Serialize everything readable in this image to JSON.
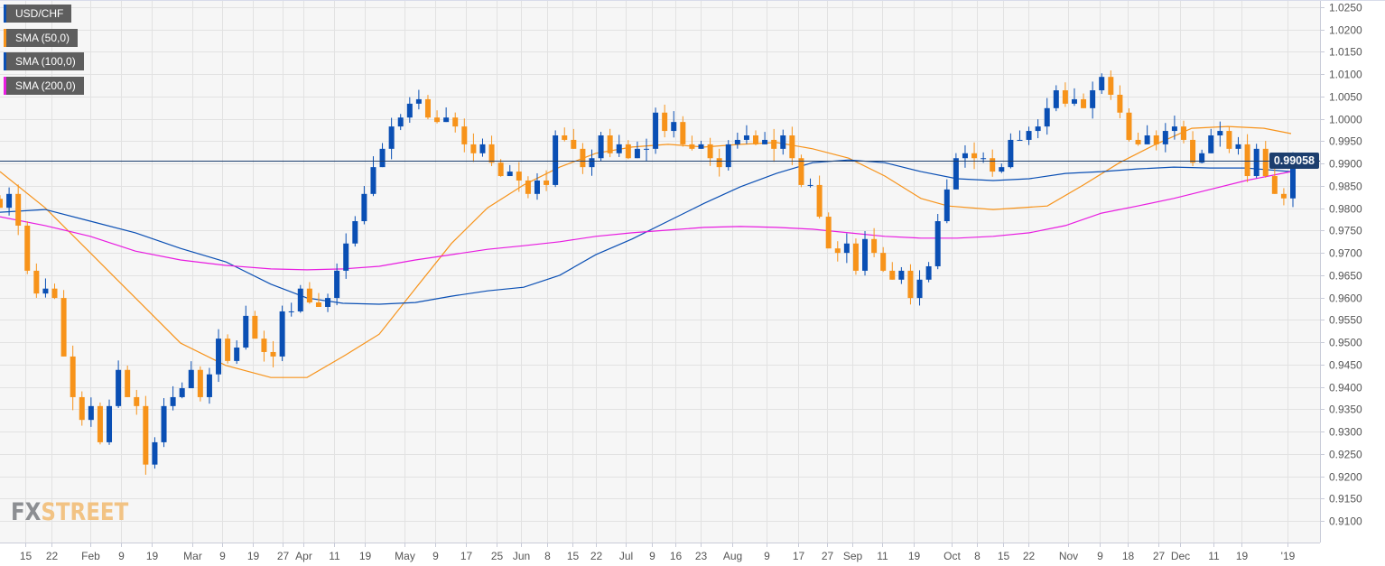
{
  "chart_data": {
    "type": "candlestick",
    "symbol": "USD/CHF",
    "legend": [
      {
        "label": "USD/CHF",
        "color": "#0a4fb4"
      },
      {
        "label": "SMA (50,0)",
        "color": "#f7931a"
      },
      {
        "label": "SMA (100,0)",
        "color": "#0a4fb4"
      },
      {
        "label": "SMA (200,0)",
        "color": "#e81ce0"
      }
    ],
    "legend_placement": "top-left",
    "last_price": 0.99058,
    "last_price_label": "0.99058",
    "ylim": [
      0.905,
      1.0265
    ],
    "yticks": [
      "1.0250",
      "1.0200",
      "1.0150",
      "1.0100",
      "1.0050",
      "1.0000",
      "0.9950",
      "0.9900",
      "0.9850",
      "0.9800",
      "0.9750",
      "0.9700",
      "0.9650",
      "0.9600",
      "0.9550",
      "0.9500",
      "0.9450",
      "0.9400",
      "0.9350",
      "0.9300",
      "0.9250",
      "0.9200",
      "0.9150",
      "0.9100"
    ],
    "xlim": [
      0,
      146
    ],
    "xticks": [
      {
        "t": 2.8,
        "label": "15"
      },
      {
        "t": 5.7,
        "label": "22"
      },
      {
        "t": 10,
        "label": "Feb"
      },
      {
        "t": 13.4,
        "label": "9"
      },
      {
        "t": 16.8,
        "label": "19"
      },
      {
        "t": 21.3,
        "label": "Mar"
      },
      {
        "t": 24.6,
        "label": "9"
      },
      {
        "t": 28,
        "label": "19"
      },
      {
        "t": 31.3,
        "label": "27"
      },
      {
        "t": 33.6,
        "label": "Apr"
      },
      {
        "t": 37,
        "label": "11"
      },
      {
        "t": 40.4,
        "label": "19"
      },
      {
        "t": 44.8,
        "label": "May"
      },
      {
        "t": 48.2,
        "label": "9"
      },
      {
        "t": 51.6,
        "label": "17"
      },
      {
        "t": 55,
        "label": "25"
      },
      {
        "t": 57.7,
        "label": "Jun"
      },
      {
        "t": 60.6,
        "label": "8"
      },
      {
        "t": 63.4,
        "label": "15"
      },
      {
        "t": 66,
        "label": "22"
      },
      {
        "t": 69.3,
        "label": "Jul"
      },
      {
        "t": 72.2,
        "label": "9"
      },
      {
        "t": 74.8,
        "label": "16"
      },
      {
        "t": 77.6,
        "label": "23"
      },
      {
        "t": 81.1,
        "label": "Aug"
      },
      {
        "t": 84.9,
        "label": "9"
      },
      {
        "t": 88.4,
        "label": "17"
      },
      {
        "t": 91.6,
        "label": "27"
      },
      {
        "t": 94.4,
        "label": "Sep"
      },
      {
        "t": 97.7,
        "label": "11"
      },
      {
        "t": 101.2,
        "label": "19"
      },
      {
        "t": 105.4,
        "label": "Oct"
      },
      {
        "t": 108.2,
        "label": "8"
      },
      {
        "t": 111.1,
        "label": "15"
      },
      {
        "t": 113.9,
        "label": "22"
      },
      {
        "t": 118.3,
        "label": "Nov"
      },
      {
        "t": 121.8,
        "label": "9"
      },
      {
        "t": 124.9,
        "label": "18"
      },
      {
        "t": 128.3,
        "label": "27"
      },
      {
        "t": 130.7,
        "label": "Dec"
      },
      {
        "t": 134.4,
        "label": "11"
      },
      {
        "t": 137.5,
        "label": "19"
      },
      {
        "t": 142.6,
        "label": "'19"
      }
    ],
    "closes": [
      0.9801,
      0.9832,
      0.9761,
      0.966,
      0.9609,
      0.962,
      0.9599,
      0.9468,
      0.9377,
      0.9326,
      0.9357,
      0.9276,
      0.9357,
      0.9438,
      0.9377,
      0.9357,
      0.9226,
      0.9276,
      0.9357,
      0.9377,
      0.9397,
      0.9438,
      0.9377,
      0.9428,
      0.9508,
      0.9458,
      0.9488,
      0.9559,
      0.9508,
      0.9478,
      0.9468,
      0.9569,
      0.9569,
      0.962,
      0.9589,
      0.9579,
      0.9599,
      0.966,
      0.9721,
      0.9771,
      0.9832,
      0.9892,
      0.9933,
      0.9983,
      1.0003,
      1.0034,
      1.0044,
      1.0003,
      0.9993,
      1.0003,
      0.9983,
      0.9943,
      0.9923,
      0.9943,
      0.9902,
      0.9872,
      0.9882,
      0.9862,
      0.9832,
      0.9862,
      0.9852,
      0.9963,
      0.9953,
      0.9933,
      0.9892,
      0.9912,
      0.9963,
      0.9923,
      0.9943,
      0.9912,
      0.9933,
      0.9933,
      1.0014,
      0.9973,
      0.9993,
      0.9943,
      0.9933,
      0.9943,
      0.9912,
      0.9892,
      0.9943,
      0.9953,
      0.9963,
      0.9943,
      0.9953,
      0.9933,
      0.9963,
      0.9912,
      0.9852,
      0.9852,
      0.9781,
      0.971,
      0.97,
      0.9721,
      0.966,
      0.9731,
      0.97,
      0.966,
      0.964,
      0.966,
      0.9599,
      0.964,
      0.967,
      0.9771,
      0.9842,
      0.9912,
      0.9923,
      0.9912,
      0.9912,
      0.9882,
      0.9892,
      0.9953,
      0.9953,
      0.9973,
      0.9983,
      1.0024,
      1.0064,
      1.0034,
      1.0044,
      1.0024,
      1.0064,
      1.0094,
      1.0054,
      1.0014,
      0.9953,
      0.9943,
      0.9963,
      0.9943,
      0.9973,
      0.9983,
      0.9953,
      0.9902,
      0.9923,
      0.9963,
      0.9973,
      0.9933,
      0.9943,
      0.9872,
      0.9933,
      0.9872,
      0.9832,
      0.9822,
      0.99058
    ],
    "series": [
      {
        "name": "SMA (50,0)",
        "color": "#f7931a",
        "points": [
          [
            0,
            0.9882
          ],
          [
            5,
            0.9801
          ],
          [
            10,
            0.97
          ],
          [
            15,
            0.9599
          ],
          [
            20,
            0.9498
          ],
          [
            25,
            0.9448
          ],
          [
            30,
            0.9421
          ],
          [
            34,
            0.9421
          ],
          [
            38,
            0.9468
          ],
          [
            42,
            0.9518
          ],
          [
            46,
            0.962
          ],
          [
            50,
            0.9721
          ],
          [
            54,
            0.9801
          ],
          [
            58,
            0.9852
          ],
          [
            62,
            0.9892
          ],
          [
            66,
            0.9923
          ],
          [
            70,
            0.9937
          ],
          [
            74,
            0.9943
          ],
          [
            78,
            0.9937
          ],
          [
            82,
            0.9943
          ],
          [
            86,
            0.9947
          ],
          [
            90,
            0.9933
          ],
          [
            94,
            0.9912
          ],
          [
            98,
            0.9872
          ],
          [
            102,
            0.9822
          ],
          [
            105,
            0.9805
          ],
          [
            110,
            0.9797
          ],
          [
            116,
            0.9805
          ],
          [
            120,
            0.9852
          ],
          [
            124,
            0.9902
          ],
          [
            128,
            0.9943
          ],
          [
            132,
            0.9979
          ],
          [
            136,
            0.9983
          ],
          [
            140,
            0.9979
          ],
          [
            143,
            0.9967
          ]
        ]
      },
      {
        "name": "SMA (100,0)",
        "color": "#0a4fb4",
        "points": [
          [
            0,
            0.9791
          ],
          [
            5,
            0.9797
          ],
          [
            10,
            0.9771
          ],
          [
            15,
            0.9745
          ],
          [
            20,
            0.971
          ],
          [
            25,
            0.968
          ],
          [
            30,
            0.963
          ],
          [
            34,
            0.9599
          ],
          [
            38,
            0.9587
          ],
          [
            42,
            0.9585
          ],
          [
            46,
            0.9589
          ],
          [
            50,
            0.9603
          ],
          [
            54,
            0.9615
          ],
          [
            58,
            0.9623
          ],
          [
            62,
            0.965
          ],
          [
            66,
            0.9696
          ],
          [
            70,
            0.9731
          ],
          [
            74,
            0.9771
          ],
          [
            78,
            0.9811
          ],
          [
            82,
            0.9848
          ],
          [
            86,
            0.9878
          ],
          [
            90,
            0.9902
          ],
          [
            94,
            0.9908
          ],
          [
            98,
            0.9902
          ],
          [
            102,
            0.9882
          ],
          [
            106,
            0.9866
          ],
          [
            110,
            0.9862
          ],
          [
            114,
            0.9866
          ],
          [
            118,
            0.9878
          ],
          [
            122,
            0.9882
          ],
          [
            126,
            0.9888
          ],
          [
            130,
            0.9892
          ],
          [
            134,
            0.989
          ],
          [
            138,
            0.989
          ],
          [
            143,
            0.9882
          ]
        ]
      },
      {
        "name": "SMA (200,0)",
        "color": "#e81ce0",
        "points": [
          [
            0,
            0.9781
          ],
          [
            5,
            0.9761
          ],
          [
            10,
            0.9737
          ],
          [
            15,
            0.9704
          ],
          [
            20,
            0.9684
          ],
          [
            25,
            0.9672
          ],
          [
            30,
            0.9664
          ],
          [
            34,
            0.9662
          ],
          [
            38,
            0.9664
          ],
          [
            42,
            0.967
          ],
          [
            46,
            0.9684
          ],
          [
            50,
            0.9696
          ],
          [
            54,
            0.9708
          ],
          [
            58,
            0.9716
          ],
          [
            62,
            0.9725
          ],
          [
            66,
            0.9737
          ],
          [
            70,
            0.9745
          ],
          [
            74,
            0.9751
          ],
          [
            78,
            0.9757
          ],
          [
            82,
            0.9759
          ],
          [
            86,
            0.9757
          ],
          [
            90,
            0.9753
          ],
          [
            94,
            0.9745
          ],
          [
            98,
            0.9737
          ],
          [
            102,
            0.9733
          ],
          [
            106,
            0.9733
          ],
          [
            110,
            0.9737
          ],
          [
            114,
            0.9745
          ],
          [
            118,
            0.9761
          ],
          [
            122,
            0.9789
          ],
          [
            126,
            0.9805
          ],
          [
            130,
            0.9822
          ],
          [
            134,
            0.9842
          ],
          [
            138,
            0.9862
          ],
          [
            143,
            0.9882
          ]
        ]
      }
    ],
    "colors": {
      "bull": "#0a4fb4",
      "bear": "#f7931a",
      "price_line": "#1c3e6e"
    }
  },
  "watermark": {
    "part1": "FX",
    "part2": "STREET"
  }
}
